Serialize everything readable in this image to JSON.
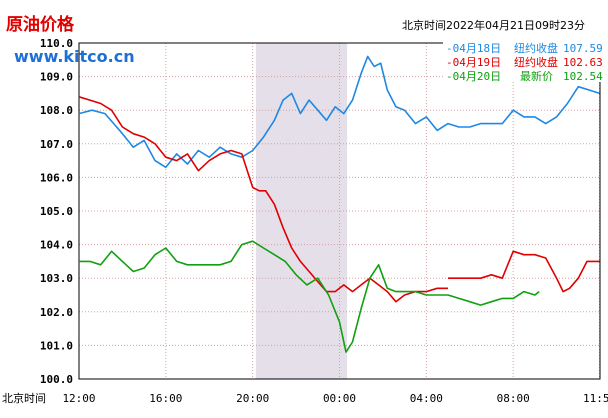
{
  "header": {
    "title": "原油价格",
    "site": "www.kitco.cn",
    "timestamp": "北京时间2022年04月21日09时23分"
  },
  "legend": [
    {
      "date": "-04月18日",
      "label": "纽约收盘",
      "value": "107.59",
      "color": "#1e88e5"
    },
    {
      "date": "-04月19日",
      "label": "纽约收盘",
      "value": "102.63",
      "color": "#e00000"
    },
    {
      "date": "-04月20日",
      "label": "最新价",
      "value": "102.54",
      "color": "#10a010"
    }
  ],
  "x_axis_caption": "北京时间",
  "colors": {
    "plot_bg": "#ffffff",
    "shade": "#e4dfe8",
    "grid": "#d9a0a0",
    "axis_text": "#000000",
    "title": "#e00000",
    "site": "#1e6fd8"
  },
  "chart_data": {
    "type": "line",
    "title": "原油价格",
    "xlabel": "北京时间",
    "ylabel": "",
    "x_unit": "hours elapsed from 12:00 (Beijing time), 0–24",
    "x_range": [
      0,
      24
    ],
    "y_range": [
      100.0,
      110.0
    ],
    "y_ticks": [
      "100.0",
      "101.0",
      "102.0",
      "103.0",
      "104.0",
      "105.0",
      "106.0",
      "107.0",
      "108.0",
      "109.0",
      "110.0"
    ],
    "x_ticks": [
      {
        "x": 0,
        "label": "12:00"
      },
      {
        "x": 4,
        "label": "16:00"
      },
      {
        "x": 8,
        "label": "20:00"
      },
      {
        "x": 12,
        "label": "00:00"
      },
      {
        "x": 16,
        "label": "04:00"
      },
      {
        "x": 20,
        "label": "08:00"
      },
      {
        "x": 23.98,
        "label": "11:59"
      }
    ],
    "shaded_range": [
      8.15,
      12.35
    ],
    "grid": true,
    "legend_position": "top-right",
    "series": [
      {
        "name": "04月18日",
        "color": "#1e88e5",
        "segments": [
          [
            [
              0,
              107.9
            ],
            [
              0.6,
              108.0
            ],
            [
              1.2,
              107.9
            ],
            [
              1.6,
              107.6
            ],
            [
              2.0,
              107.3
            ],
            [
              2.5,
              106.9
            ],
            [
              3.0,
              107.1
            ],
            [
              3.5,
              106.5
            ],
            [
              4.0,
              106.3
            ],
            [
              4.5,
              106.7
            ],
            [
              5.0,
              106.4
            ],
            [
              5.5,
              106.8
            ],
            [
              6.0,
              106.6
            ],
            [
              6.5,
              106.9
            ],
            [
              7.0,
              106.7
            ],
            [
              7.5,
              106.6
            ],
            [
              8.0,
              106.8
            ],
            [
              8.5,
              107.2
            ],
            [
              9.0,
              107.7
            ],
            [
              9.4,
              108.3
            ],
            [
              9.8,
              108.5
            ],
            [
              10.2,
              107.9
            ],
            [
              10.6,
              108.3
            ],
            [
              11.0,
              108.0
            ],
            [
              11.4,
              107.7
            ],
            [
              11.8,
              108.1
            ],
            [
              12.2,
              107.9
            ],
            [
              12.6,
              108.3
            ],
            [
              13.0,
              109.1
            ],
            [
              13.3,
              109.6
            ],
            [
              13.6,
              109.3
            ],
            [
              13.9,
              109.4
            ],
            [
              14.2,
              108.6
            ],
            [
              14.6,
              108.1
            ],
            [
              15.0,
              108.0
            ],
            [
              15.5,
              107.6
            ],
            [
              16.0,
              107.8
            ],
            [
              16.5,
              107.4
            ],
            [
              17.0,
              107.6
            ],
            [
              17.5,
              107.5
            ],
            [
              18.0,
              107.5
            ],
            [
              18.5,
              107.6
            ],
            [
              19.0,
              107.6
            ],
            [
              19.5,
              107.6
            ],
            [
              20.0,
              108.0
            ],
            [
              20.5,
              107.8
            ],
            [
              21.0,
              107.8
            ],
            [
              21.5,
              107.6
            ],
            [
              22.0,
              107.8
            ],
            [
              22.5,
              108.2
            ],
            [
              23.0,
              108.7
            ],
            [
              23.5,
              108.6
            ],
            [
              23.98,
              108.5
            ]
          ]
        ]
      },
      {
        "name": "04月19日",
        "color": "#e00000",
        "segments": [
          [
            [
              0,
              108.4
            ],
            [
              0.5,
              108.3
            ],
            [
              1.0,
              108.2
            ],
            [
              1.5,
              108.0
            ],
            [
              2.0,
              107.5
            ],
            [
              2.5,
              107.3
            ],
            [
              3.0,
              107.2
            ],
            [
              3.5,
              107.0
            ],
            [
              4.0,
              106.6
            ],
            [
              4.5,
              106.5
            ],
            [
              5.0,
              106.7
            ],
            [
              5.5,
              106.2
            ],
            [
              6.0,
              106.5
            ],
            [
              6.5,
              106.7
            ],
            [
              7.0,
              106.8
            ],
            [
              7.5,
              106.7
            ],
            [
              8.0,
              105.7
            ],
            [
              8.3,
              105.6
            ],
            [
              8.6,
              105.6
            ],
            [
              9.0,
              105.2
            ],
            [
              9.4,
              104.5
            ],
            [
              9.8,
              103.9
            ],
            [
              10.2,
              103.5
            ],
            [
              10.6,
              103.2
            ],
            [
              11.0,
              102.9
            ],
            [
              11.4,
              102.6
            ],
            [
              11.8,
              102.6
            ],
            [
              12.2,
              102.8
            ],
            [
              12.6,
              102.6
            ],
            [
              13.0,
              102.8
            ],
            [
              13.4,
              103.0
            ],
            [
              13.8,
              102.8
            ],
            [
              14.2,
              102.6
            ],
            [
              14.6,
              102.3
            ],
            [
              15.0,
              102.5
            ],
            [
              15.5,
              102.6
            ],
            [
              16.0,
              102.6
            ],
            [
              16.5,
              102.7
            ],
            [
              17.0,
              102.7
            ]
          ],
          [
            [
              17.0,
              103.0
            ],
            [
              17.5,
              103.0
            ],
            [
              18.0,
              103.0
            ],
            [
              18.5,
              103.0
            ],
            [
              19.0,
              103.1
            ],
            [
              19.5,
              103.0
            ],
            [
              20.0,
              103.8
            ],
            [
              20.5,
              103.7
            ],
            [
              21.0,
              103.7
            ],
            [
              21.5,
              103.6
            ],
            [
              22.0,
              103.0
            ],
            [
              22.3,
              102.6
            ],
            [
              22.6,
              102.7
            ],
            [
              23.0,
              103.0
            ],
            [
              23.4,
              103.5
            ],
            [
              23.98,
              103.5
            ]
          ]
        ]
      },
      {
        "name": "04月20日",
        "color": "#10a010",
        "segments": [
          [
            [
              0,
              103.5
            ],
            [
              0.5,
              103.5
            ],
            [
              1.0,
              103.4
            ],
            [
              1.5,
              103.8
            ],
            [
              2.0,
              103.5
            ],
            [
              2.5,
              103.2
            ],
            [
              3.0,
              103.3
            ],
            [
              3.5,
              103.7
            ],
            [
              4.0,
              103.9
            ],
            [
              4.5,
              103.5
            ],
            [
              5.0,
              103.4
            ],
            [
              5.5,
              103.4
            ],
            [
              6.0,
              103.4
            ],
            [
              6.5,
              103.4
            ],
            [
              7.0,
              103.5
            ],
            [
              7.5,
              104.0
            ],
            [
              8.0,
              104.1
            ],
            [
              8.5,
              103.9
            ],
            [
              9.0,
              103.7
            ],
            [
              9.5,
              103.5
            ],
            [
              10.0,
              103.1
            ],
            [
              10.5,
              102.8
            ],
            [
              11.0,
              103.0
            ],
            [
              11.5,
              102.5
            ],
            [
              12.0,
              101.7
            ],
            [
              12.3,
              100.8
            ],
            [
              12.6,
              101.1
            ],
            [
              13.0,
              102.1
            ],
            [
              13.4,
              103.0
            ],
            [
              13.8,
              103.4
            ],
            [
              14.2,
              102.7
            ],
            [
              14.6,
              102.6
            ],
            [
              15.0,
              102.6
            ],
            [
              15.5,
              102.6
            ],
            [
              16.0,
              102.5
            ],
            [
              16.5,
              102.5
            ],
            [
              17.0,
              102.5
            ],
            [
              17.5,
              102.4
            ],
            [
              18.0,
              102.3
            ],
            [
              18.5,
              102.2
            ],
            [
              19.0,
              102.3
            ],
            [
              19.5,
              102.4
            ],
            [
              20.0,
              102.4
            ],
            [
              20.5,
              102.6
            ],
            [
              21.0,
              102.5
            ],
            [
              21.2,
              102.6
            ]
          ]
        ]
      }
    ]
  }
}
